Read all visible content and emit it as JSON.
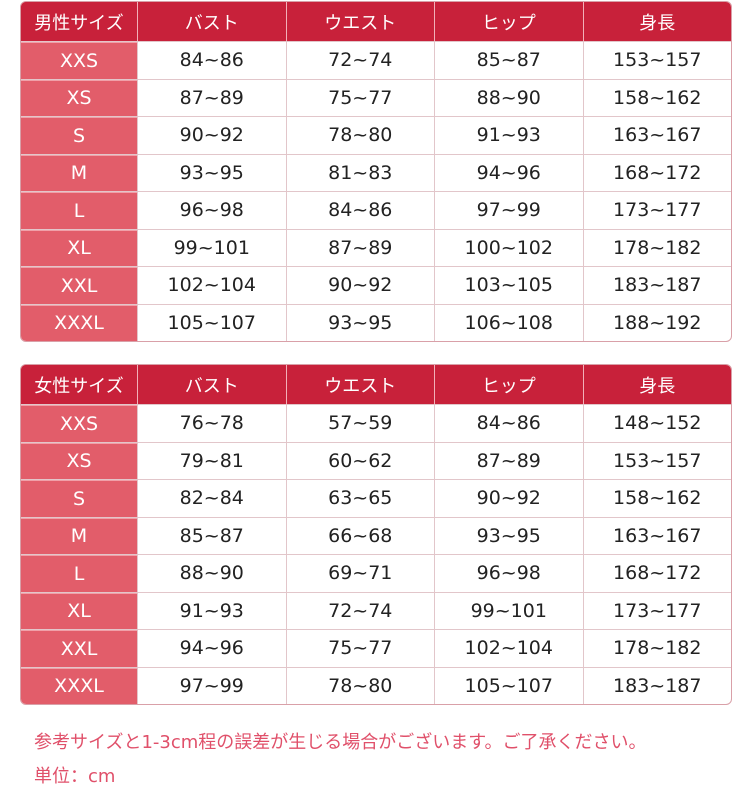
{
  "colors": {
    "header": "#c8213a",
    "size_column": "#e25d6a",
    "note_text": "#e0506a"
  },
  "tables": [
    {
      "headers": [
        "男性サイズ",
        "バスト",
        "ウエスト",
        "ヒップ",
        "身長"
      ],
      "rows": [
        [
          "XXS",
          "84~86",
          "72~74",
          "85~87",
          "153~157"
        ],
        [
          "XS",
          "87~89",
          "75~77",
          "88~90",
          "158~162"
        ],
        [
          "S",
          "90~92",
          "78~80",
          "91~93",
          "163~167"
        ],
        [
          "M",
          "93~95",
          "81~83",
          "94~96",
          "168~172"
        ],
        [
          "L",
          "96~98",
          "84~86",
          "97~99",
          "173~177"
        ],
        [
          "XL",
          "99~101",
          "87~89",
          "100~102",
          "178~182"
        ],
        [
          "XXL",
          "102~104",
          "90~92",
          "103~105",
          "183~187"
        ],
        [
          "XXXL",
          "105~107",
          "93~95",
          "106~108",
          "188~192"
        ]
      ]
    },
    {
      "headers": [
        "女性サイズ",
        "バスト",
        "ウエスト",
        "ヒップ",
        "身長"
      ],
      "rows": [
        [
          "XXS",
          "76~78",
          "57~59",
          "84~86",
          "148~152"
        ],
        [
          "XS",
          "79~81",
          "60~62",
          "87~89",
          "153~157"
        ],
        [
          "S",
          "82~84",
          "63~65",
          "90~92",
          "158~162"
        ],
        [
          "M",
          "85~87",
          "66~68",
          "93~95",
          "163~167"
        ],
        [
          "L",
          "88~90",
          "69~71",
          "96~98",
          "168~172"
        ],
        [
          "XL",
          "91~93",
          "72~74",
          "99~101",
          "173~177"
        ],
        [
          "XXL",
          "94~96",
          "75~77",
          "102~104",
          "178~182"
        ],
        [
          "XXXL",
          "97~99",
          "78~80",
          "105~107",
          "183~187"
        ]
      ]
    }
  ],
  "notes": {
    "tolerance": "参考サイズと1-3cm程の誤差が生じる場合がございます。ご了承ください。",
    "unit": "単位：cm"
  }
}
